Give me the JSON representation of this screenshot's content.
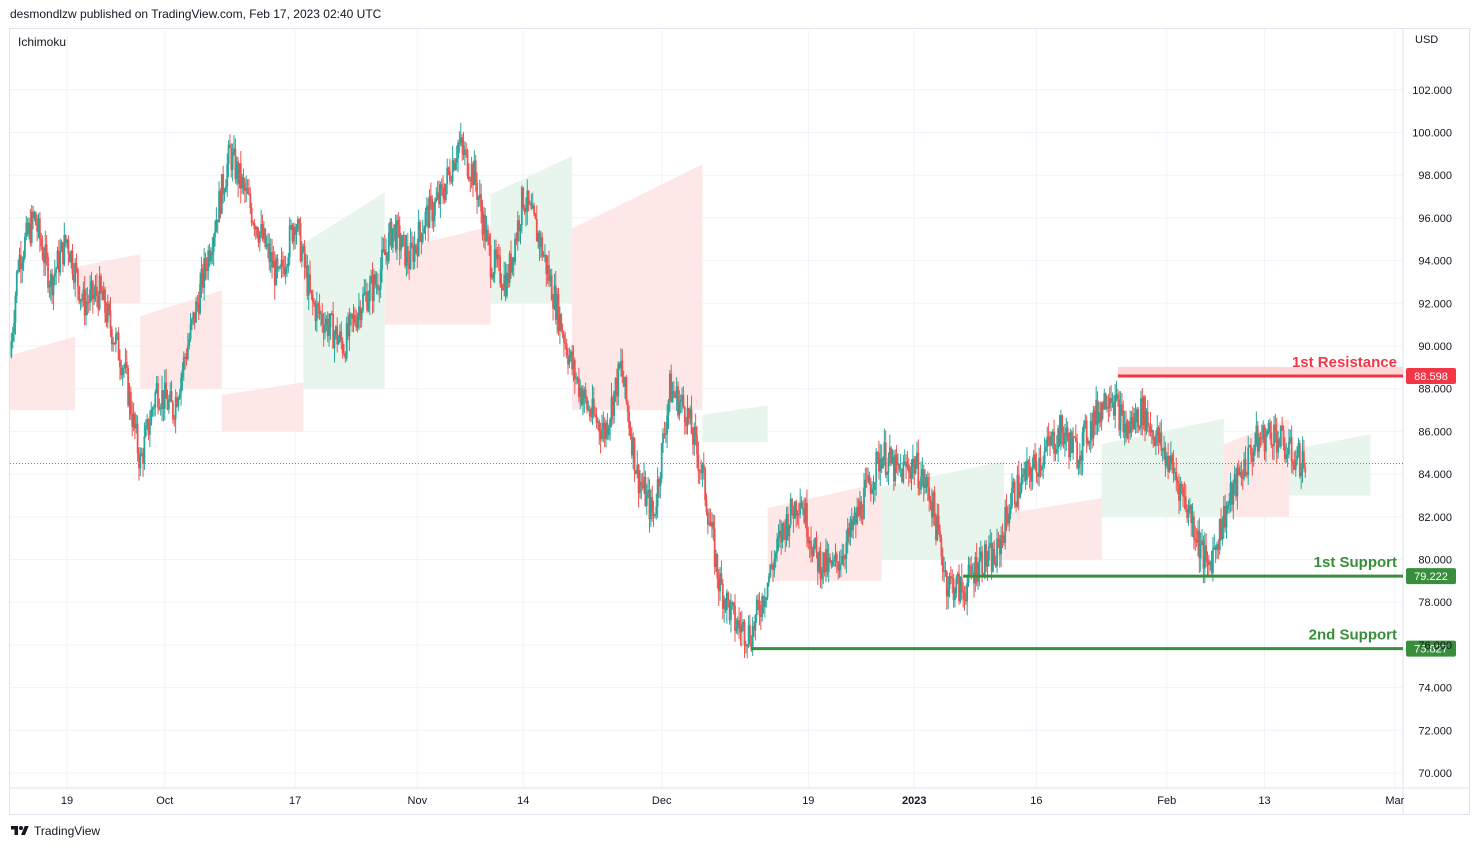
{
  "header": {
    "publisher": "desmondlzw published on TradingView.com, Feb 17, 2023 02:40 UTC"
  },
  "indicator": "Ichimoku",
  "currency": "USD",
  "footer": {
    "brand": "TradingView"
  },
  "colors": {
    "up": "#26a69a",
    "down": "#ef5350",
    "resistance": "#f23645",
    "support": "#388e3c",
    "cloud_bull": "#e6f4ea",
    "cloud_bear": "#fde4e4",
    "last_price": "#ef5350"
  },
  "chart_data": {
    "type": "candlestick",
    "y_axis": {
      "ticks": [
        70,
        72,
        74,
        76,
        78,
        80,
        82,
        84,
        86,
        88,
        90,
        92,
        94,
        96,
        98,
        100,
        102
      ],
      "tick_labels": [
        "70.000",
        "72.000",
        "74.000",
        "76.000",
        "78.000",
        "80.000",
        "82.000",
        "84.000",
        "86.000",
        "88.000",
        "90.000",
        "92.000",
        "94.000",
        "96.000",
        "98.000",
        "100.000",
        "102.000"
      ],
      "range": [
        69.3,
        104.8
      ]
    },
    "x_axis": {
      "range": [
        "2022-09-12",
        "2023-03-02"
      ],
      "ticks": [
        {
          "date": "2022-09-19",
          "label": "19"
        },
        {
          "date": "2022-10-01",
          "label": "Oct"
        },
        {
          "date": "2022-10-17",
          "label": "17"
        },
        {
          "date": "2022-11-01",
          "label": "Nov"
        },
        {
          "date": "2022-11-14",
          "label": "14"
        },
        {
          "date": "2022-12-01",
          "label": "Dec"
        },
        {
          "date": "2022-12-19",
          "label": "19"
        },
        {
          "date": "2023-01-01",
          "label": "2023"
        },
        {
          "date": "2023-01-16",
          "label": "16"
        },
        {
          "date": "2023-02-01",
          "label": "Feb"
        },
        {
          "date": "2023-02-13",
          "label": "13"
        },
        {
          "date": "2023-03-01",
          "label": "Mar"
        }
      ]
    },
    "price_path": [
      [
        "2022-09-12",
        89.5
      ],
      [
        "2022-09-13",
        94
      ],
      [
        "2022-09-15",
        96
      ],
      [
        "2022-09-17",
        93
      ],
      [
        "2022-09-19",
        95
      ],
      [
        "2022-09-21",
        92
      ],
      [
        "2022-09-23",
        92.5
      ],
      [
        "2022-09-26",
        89
      ],
      [
        "2022-09-28",
        84.5
      ],
      [
        "2022-09-30",
        88
      ],
      [
        "2022-10-02",
        87
      ],
      [
        "2022-10-05",
        92
      ],
      [
        "2022-10-07",
        95.5
      ],
      [
        "2022-10-09",
        99
      ],
      [
        "2022-10-11",
        97
      ],
      [
        "2022-10-13",
        95
      ],
      [
        "2022-10-15",
        93
      ],
      [
        "2022-10-17",
        96
      ],
      [
        "2022-10-19",
        92
      ],
      [
        "2022-10-21",
        91
      ],
      [
        "2022-10-23",
        90
      ],
      [
        "2022-10-25",
        92
      ],
      [
        "2022-10-27",
        93
      ],
      [
        "2022-10-29",
        95.5
      ],
      [
        "2022-10-31",
        94
      ],
      [
        "2022-11-02",
        96
      ],
      [
        "2022-11-04",
        97
      ],
      [
        "2022-11-06",
        99.5
      ],
      [
        "2022-11-08",
        98
      ],
      [
        "2022-11-10",
        94
      ],
      [
        "2022-11-12",
        93
      ],
      [
        "2022-11-14",
        97
      ],
      [
        "2022-11-16",
        95
      ],
      [
        "2022-11-18",
        92
      ],
      [
        "2022-11-20",
        89
      ],
      [
        "2022-11-22",
        87
      ],
      [
        "2022-11-24",
        86
      ],
      [
        "2022-11-26",
        89
      ],
      [
        "2022-11-28",
        84
      ],
      [
        "2022-11-30",
        82
      ],
      [
        "2022-12-02",
        88
      ],
      [
        "2022-12-04",
        87
      ],
      [
        "2022-12-06",
        84
      ],
      [
        "2022-12-08",
        79
      ],
      [
        "2022-12-10",
        77
      ],
      [
        "2022-12-12",
        76.5
      ],
      [
        "2022-12-14",
        79
      ],
      [
        "2022-12-16",
        81.5
      ],
      [
        "2022-12-18",
        83
      ],
      [
        "2022-12-20",
        80
      ],
      [
        "2022-12-22",
        79.5
      ],
      [
        "2022-12-24",
        81
      ],
      [
        "2022-12-26",
        83
      ],
      [
        "2022-12-28",
        85
      ],
      [
        "2022-12-30",
        84
      ],
      [
        "2023-01-01",
        84.5
      ],
      [
        "2023-01-03",
        83
      ],
      [
        "2023-01-05",
        79
      ],
      [
        "2023-01-07",
        78.5
      ],
      [
        "2023-01-09",
        80
      ],
      [
        "2023-01-11",
        80
      ],
      [
        "2023-01-13",
        83
      ],
      [
        "2023-01-15",
        84
      ],
      [
        "2023-01-17",
        85
      ],
      [
        "2023-01-19",
        86
      ],
      [
        "2023-01-21",
        85
      ],
      [
        "2023-01-23",
        86.5
      ],
      [
        "2023-01-25",
        88
      ],
      [
        "2023-01-27",
        86
      ],
      [
        "2023-01-29",
        87
      ],
      [
        "2023-01-31",
        85.5
      ],
      [
        "2023-02-02",
        84
      ],
      [
        "2023-02-04",
        82
      ],
      [
        "2023-02-06",
        79.5
      ],
      [
        "2023-02-08",
        82
      ],
      [
        "2023-02-10",
        84
      ],
      [
        "2023-02-12",
        85.5
      ],
      [
        "2023-02-14",
        86
      ],
      [
        "2023-02-16",
        85
      ],
      [
        "2023-02-18",
        84.5
      ]
    ],
    "ichimoku_cloud_segments": [
      {
        "from": "2022-09-12",
        "to": "2022-09-20",
        "top": 90,
        "bottom": 87,
        "sentiment": "bearish"
      },
      {
        "from": "2022-09-20",
        "to": "2022-09-28",
        "top": 94,
        "bottom": 92,
        "sentiment": "bearish"
      },
      {
        "from": "2022-09-28",
        "to": "2022-10-08",
        "top": 92,
        "bottom": 88,
        "sentiment": "bearish"
      },
      {
        "from": "2022-10-08",
        "to": "2022-10-18",
        "top": 88,
        "bottom": 86,
        "sentiment": "bearish"
      },
      {
        "from": "2022-10-18",
        "to": "2022-10-28",
        "top": 96,
        "bottom": 88,
        "sentiment": "bullish"
      },
      {
        "from": "2022-10-28",
        "to": "2022-11-10",
        "top": 95,
        "bottom": 91,
        "sentiment": "bearish"
      },
      {
        "from": "2022-11-10",
        "to": "2022-11-20",
        "top": 98,
        "bottom": 92,
        "sentiment": "bullish"
      },
      {
        "from": "2022-11-20",
        "to": "2022-12-06",
        "top": 97,
        "bottom": 87,
        "sentiment": "bearish"
      },
      {
        "from": "2022-12-06",
        "to": "2022-12-14",
        "top": 87,
        "bottom": 85.5,
        "sentiment": "bullish"
      },
      {
        "from": "2022-12-14",
        "to": "2022-12-28",
        "top": 83,
        "bottom": 79,
        "sentiment": "bearish"
      },
      {
        "from": "2022-12-28",
        "to": "2023-01-12",
        "top": 84,
        "bottom": 80,
        "sentiment": "bullish"
      },
      {
        "from": "2023-01-12",
        "to": "2023-01-24",
        "top": 82.5,
        "bottom": 80,
        "sentiment": "bearish"
      },
      {
        "from": "2023-01-24",
        "to": "2023-02-08",
        "top": 86,
        "bottom": 82,
        "sentiment": "bullish"
      },
      {
        "from": "2023-02-08",
        "to": "2023-02-16",
        "top": 86,
        "bottom": 82,
        "sentiment": "bearish"
      },
      {
        "from": "2023-02-16",
        "to": "2023-02-26",
        "top": 85.5,
        "bottom": 83,
        "sentiment": "bullish"
      }
    ],
    "last_price": 84.5,
    "levels": [
      {
        "label": "1st Resistance",
        "value": 88.598,
        "value_label": "88.598",
        "kind": "resistance",
        "from": "2023-01-26"
      },
      {
        "label": "1st Support",
        "value": 79.222,
        "value_label": "79.222",
        "kind": "support",
        "from": "2023-01-07"
      },
      {
        "label": "2nd Support",
        "value": 75.827,
        "value_label": "75.827",
        "kind": "support",
        "from": "2022-12-12"
      }
    ]
  }
}
